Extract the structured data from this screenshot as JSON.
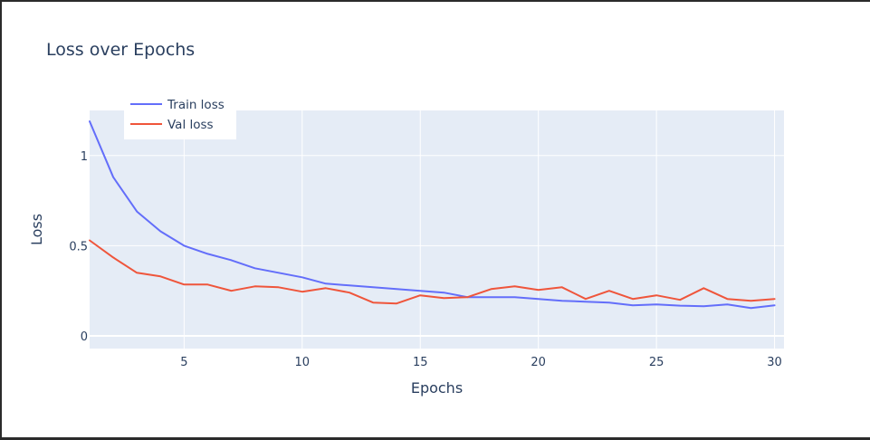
{
  "chart_data": {
    "type": "line",
    "title": "Loss over Epochs",
    "xlabel": "Epochs",
    "ylabel": "Loss",
    "x": [
      1,
      2,
      3,
      4,
      5,
      6,
      7,
      8,
      9,
      10,
      11,
      12,
      13,
      14,
      15,
      16,
      17,
      18,
      19,
      20,
      21,
      22,
      23,
      24,
      25,
      26,
      27,
      28,
      29,
      30
    ],
    "xlim": [
      1,
      30.4
    ],
    "ylim": [
      -0.07,
      1.25
    ],
    "x_ticks": [
      5,
      10,
      15,
      20,
      25,
      30
    ],
    "y_ticks": [
      0,
      0.5,
      1
    ],
    "y_tick_labels": [
      "0",
      "0.5",
      "1"
    ],
    "grid": true,
    "legend_position": "top-left",
    "series": [
      {
        "name": "Train loss",
        "color": "#636efa",
        "values": [
          1.19,
          0.88,
          0.69,
          0.58,
          0.5,
          0.455,
          0.42,
          0.375,
          0.35,
          0.325,
          0.29,
          0.28,
          0.27,
          0.26,
          0.25,
          0.24,
          0.215,
          0.215,
          0.215,
          0.205,
          0.195,
          0.19,
          0.185,
          0.17,
          0.175,
          0.168,
          0.165,
          0.175,
          0.155,
          0.17
        ]
      },
      {
        "name": "Val loss",
        "color": "#ef553b",
        "values": [
          0.53,
          0.435,
          0.35,
          0.33,
          0.285,
          0.285,
          0.25,
          0.275,
          0.27,
          0.245,
          0.265,
          0.24,
          0.185,
          0.18,
          0.225,
          0.21,
          0.215,
          0.26,
          0.275,
          0.255,
          0.27,
          0.205,
          0.25,
          0.205,
          0.225,
          0.2,
          0.265,
          0.205,
          0.195,
          0.205
        ]
      }
    ]
  }
}
